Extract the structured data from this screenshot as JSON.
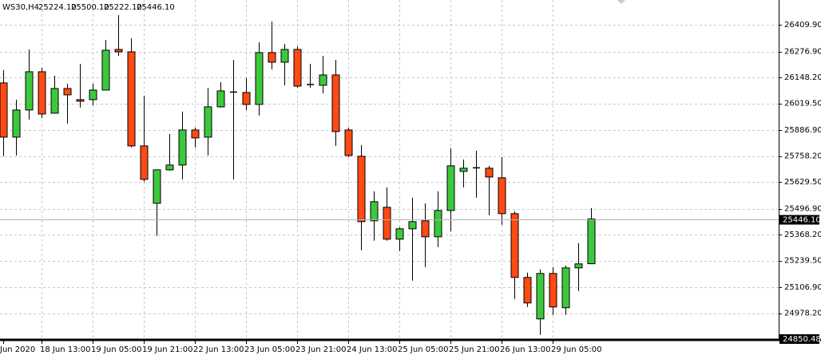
{
  "chart_data": {
    "type": "candlestick",
    "title": "WS30,H4",
    "ohlc_labels": [
      "25224.10",
      "25500.10",
      "25222.10",
      "25446.10"
    ],
    "up_color": "#3cc83c",
    "down_color": "#ff4a14",
    "grid": true,
    "ylim": [
      24850.48,
      26532.5
    ],
    "yticks": [
      {
        "value": 26409.9,
        "label": "26409.90"
      },
      {
        "value": 26276.9,
        "label": "26276.90"
      },
      {
        "value": 26148.2,
        "label": "26148.20"
      },
      {
        "value": 26019.5,
        "label": "26019.50"
      },
      {
        "value": 25886.9,
        "label": "25886.90"
      },
      {
        "value": 25758.2,
        "label": "25758.20"
      },
      {
        "value": 25629.5,
        "label": "25629.50"
      },
      {
        "value": 25496.9,
        "label": "25496.90"
      },
      {
        "value": 25368.2,
        "label": "25368.20"
      },
      {
        "value": 25239.5,
        "label": "25239.50"
      },
      {
        "value": 25106.9,
        "label": "25106.90"
      },
      {
        "value": 24978.2,
        "label": "24978.20"
      }
    ],
    "current_price": {
      "value": 25446.1,
      "label": "25446.10"
    },
    "categories": [
      "Jun 2020",
      null,
      null,
      "18 Jun 13:00",
      null,
      null,
      null,
      "19 Jun 05:00",
      null,
      null,
      null,
      "19 Jun 21:00",
      null,
      null,
      null,
      "22 Jun 13:00",
      null,
      null,
      null,
      "23 Jun 05:00",
      null,
      null,
      null,
      "23 Jun 21:00",
      null,
      null,
      null,
      "24 Jun 13:00",
      null,
      null,
      null,
      "25 Jun 05:00",
      null,
      null,
      null,
      "25 Jun 21:00",
      null,
      null,
      null,
      "26 Jun 13:00",
      null,
      null,
      null,
      "29 Jun 05:00",
      null,
      null,
      null
    ],
    "open": [
      26121.2,
      25852.2,
      25986.7,
      26176.6,
      25970.9,
      26093.5,
      26038.1,
      26038.1,
      26085.6,
      26287.3,
      26275.4,
      25808.7,
      25524,
      25690.1,
      25713.8,
      25887.8,
      25852.2,
      26002.5,
      26077.7,
      26073.7,
      26014.4,
      26271.5,
      26224,
      26287.3,
      26113.3,
      26109.3,
      26160.7,
      25887.8,
      25757.3,
      25437,
      25504.2,
      25346,
      25397.4,
      25437,
      25357.9,
      25488.4,
      25682.2,
      25701.9,
      25698,
      25650.5,
      25472.6,
      25156.2,
      24950.5,
      25175.9,
      25005.9,
      25203.6,
      25224.1
    ],
    "high": [
      26184.5,
      26038.1,
      26287.3,
      26196.3,
      26156.8,
      26117.2,
      26216.1,
      26117.2,
      26334.7,
      26457.4,
      26342.7,
      26057.9,
      25690.1,
      25868.1,
      25978.8,
      25899.7,
      26097.4,
      26125.1,
      26235.9,
      26144.9,
      26322.9,
      26425.7,
      26315,
      26303.1,
      26216.1,
      26255.6,
      26235.9,
      25899.7,
      25812.7,
      25583.3,
      25603.1,
      25405.3,
      25551.7,
      25524,
      25583.3,
      25796.9,
      25741.5,
      25785,
      25709.9,
      25753.4,
      25484.4,
      25179.9,
      25195.7,
      25207.6,
      25215.5,
      25326.2,
      25500.1
    ],
    "low": [
      25757.3,
      25761.3,
      25939.2,
      25947.2,
      25970.9,
      25919.5,
      25998.6,
      26010.4,
      26085.6,
      26255.6,
      25800.8,
      25630.8,
      25361.8,
      25686.1,
      25642.6,
      25800.8,
      25761.3,
      25998.6,
      25642.6,
      25986.7,
      25959,
      26188.4,
      26109.3,
      26097.4,
      26097.4,
      26069.8,
      25808.7,
      25753.4,
      25290.6,
      25338.1,
      25338.1,
      25286.7,
      25140.3,
      25207.6,
      25306.4,
      25385.5,
      25603.1,
      25551.7,
      25464.6,
      25417.2,
      25049.4,
      25009.8,
      24871.4,
      24970.3,
      24970.3,
      25088.9,
      25222.1
    ],
    "close": [
      25852.2,
      25986.7,
      26176.6,
      25966.9,
      26093.5,
      26061.9,
      26030.2,
      26085.6,
      26283.3,
      26275.4,
      25808.7,
      25642.6,
      25690.1,
      25713.8,
      25887.8,
      25848.3,
      26002.5,
      26081.6,
      26073.7,
      26014.4,
      26271.5,
      26224,
      26287.3,
      26105.4,
      26113.3,
      26160.7,
      25879.9,
      25761.3,
      25433,
      25531.9,
      25346,
      25397.4,
      25433,
      25357.9,
      25488.4,
      25709.9,
      25698,
      25698,
      25654.5,
      25472.6,
      25156.2,
      25029.6,
      25175.9,
      25009.8,
      25203.6,
      25223.4,
      25446.1
    ]
  }
}
